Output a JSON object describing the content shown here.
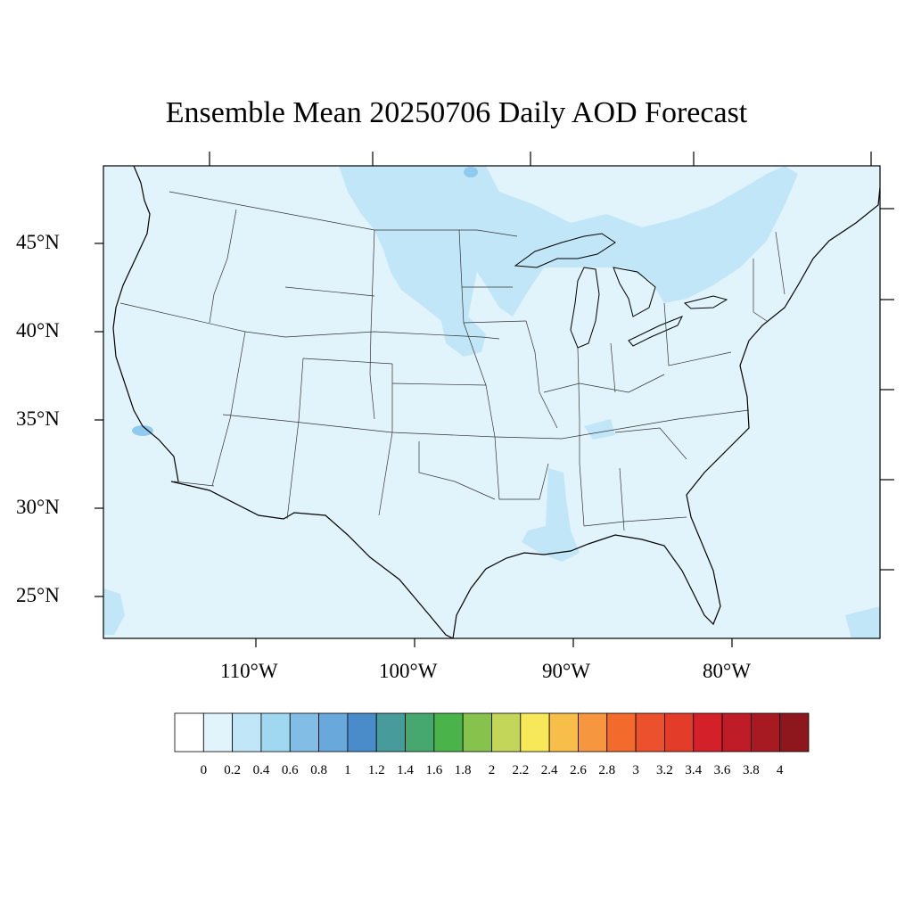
{
  "title": "Ensemble Mean 20250706 Daily AOD Forecast",
  "map": {
    "region": "Contiguous United States",
    "variable": "AOD",
    "lat_labels": [
      "45°N",
      "40°N",
      "35°N",
      "30°N",
      "25°N"
    ],
    "lon_labels": [
      "110°W",
      "100°W",
      "90°W",
      "80°W"
    ],
    "background_fill": "#e1f3fb",
    "plume_fill": "#c0e6f8",
    "hotspot_fill": "#8fcbee",
    "colors": {
      "border": "#000000",
      "state_lines": "#333333"
    }
  },
  "colorbar": {
    "labels": [
      "0",
      "0.2",
      "0.4",
      "0.6",
      "0.8",
      "1",
      "1.2",
      "1.4",
      "1.6",
      "1.8",
      "2",
      "2.2",
      "2.4",
      "2.6",
      "2.8",
      "3",
      "3.2",
      "3.4",
      "3.6",
      "3.8",
      "4"
    ],
    "colors": [
      "#ffffff",
      "#e1f3fb",
      "#c0e6f8",
      "#a0d8f2",
      "#82bde6",
      "#69a8da",
      "#4a8bc9",
      "#489b9b",
      "#47a86f",
      "#4ab44a",
      "#86c24c",
      "#c3d65a",
      "#f7e85a",
      "#f8be4a",
      "#f6963f",
      "#f36b2c",
      "#ec512d",
      "#e33d2a",
      "#d42129",
      "#be1c26",
      "#a81a22",
      "#8e171d"
    ]
  }
}
